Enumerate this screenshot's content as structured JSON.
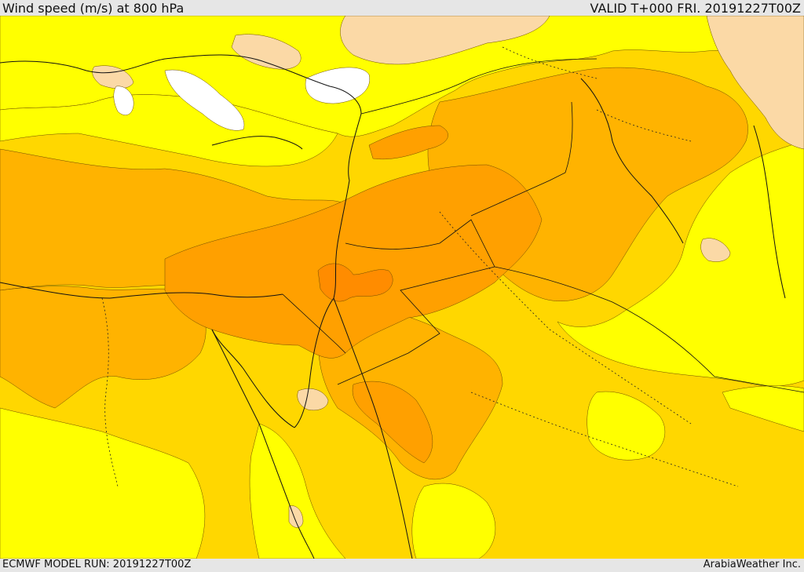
{
  "header": {
    "title": "Wind speed (m/s) at 800 hPa",
    "valid": "VALID T+000 FRI. 20191227T00Z"
  },
  "footer": {
    "model_run": "ECMWF MODEL RUN: 20191227T00Z",
    "credit": "ArabiaWeather Inc."
  },
  "map": {
    "colors": {
      "white": "#ffffff",
      "peach": "#fbd9a6",
      "yellow": "#ffff00",
      "gold": "#ffd700",
      "amber": "#ffb300",
      "orange": "#ffa000",
      "dark_orange": "#ff8c00",
      "border": "#111111"
    }
  }
}
